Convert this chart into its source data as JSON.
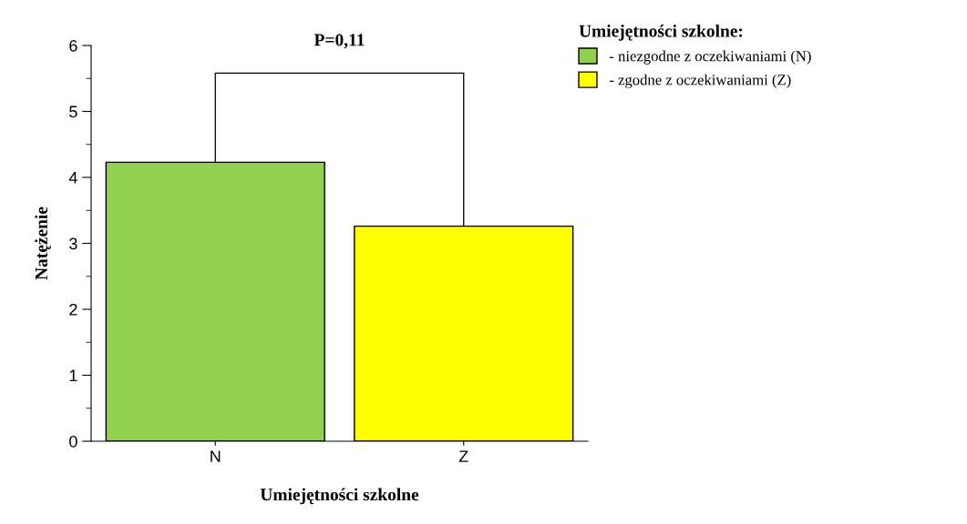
{
  "chart_data": {
    "type": "bar",
    "categories": [
      "N",
      "Z"
    ],
    "series": [
      {
        "name": "- niezgodne z oczekiwaniami (N)",
        "color": "#92d050",
        "values": [
          4.23,
          null
        ]
      },
      {
        "name": "- zgodne z oczekiwaniami (Z)",
        "color": "#ffff00",
        "values": [
          null,
          3.26
        ]
      }
    ],
    "xlabel": "Umiejętności szkolne",
    "ylabel": "Natężenie",
    "legend_title": "Umiejętności szkolne:",
    "annotations": [
      "P=0,11"
    ],
    "ylim": [
      0,
      6
    ],
    "yticks": [
      0,
      {
        "value": 0.5,
        "label": null
      },
      1,
      {
        "value": 1.5,
        "label": null
      },
      2,
      {
        "value": 2.5,
        "label": null
      },
      3,
      {
        "value": 3.5,
        "label": null
      },
      4,
      {
        "value": 4.5,
        "label": null
      },
      5,
      {
        "value": 5.5,
        "label": null
      },
      6
    ],
    "grid": false,
    "legend": "top right"
  }
}
